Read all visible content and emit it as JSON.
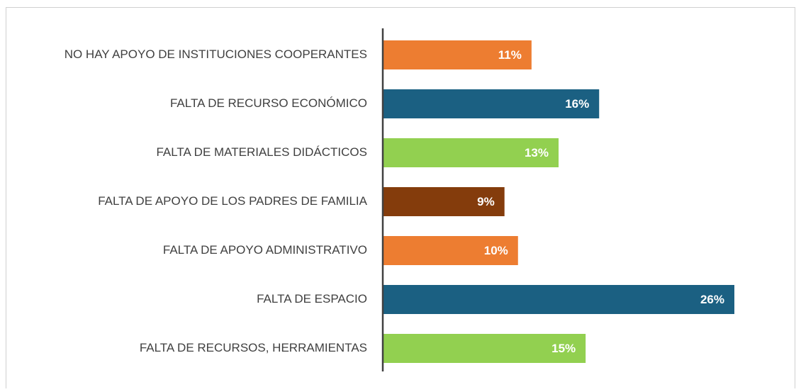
{
  "chart_data": {
    "type": "bar",
    "orientation": "horizontal",
    "categories": [
      "NO HAY APOYO DE INSTITUCIONES COOPERANTES",
      "FALTA DE RECURSO ECONÓMICO",
      "FALTA DE MATERIALES DIDÁCTICOS",
      "FALTA DE APOYO DE LOS PADRES DE FAMILIA",
      "FALTA DE APOYO ADMINISTRATIVO",
      "FALTA DE ESPACIO",
      "FALTA DE RECURSOS, HERRAMIENTAS"
    ],
    "values": [
      11,
      16,
      13,
      9,
      10,
      26,
      15
    ],
    "value_labels": [
      "11%",
      "16%",
      "13%",
      "9%",
      "10%",
      "26%",
      "15%"
    ],
    "colors": [
      "#ED7D31",
      "#1B6082",
      "#92D050",
      "#843C0C",
      "#ED7D31",
      "#1B6082",
      "#92D050"
    ]
  }
}
